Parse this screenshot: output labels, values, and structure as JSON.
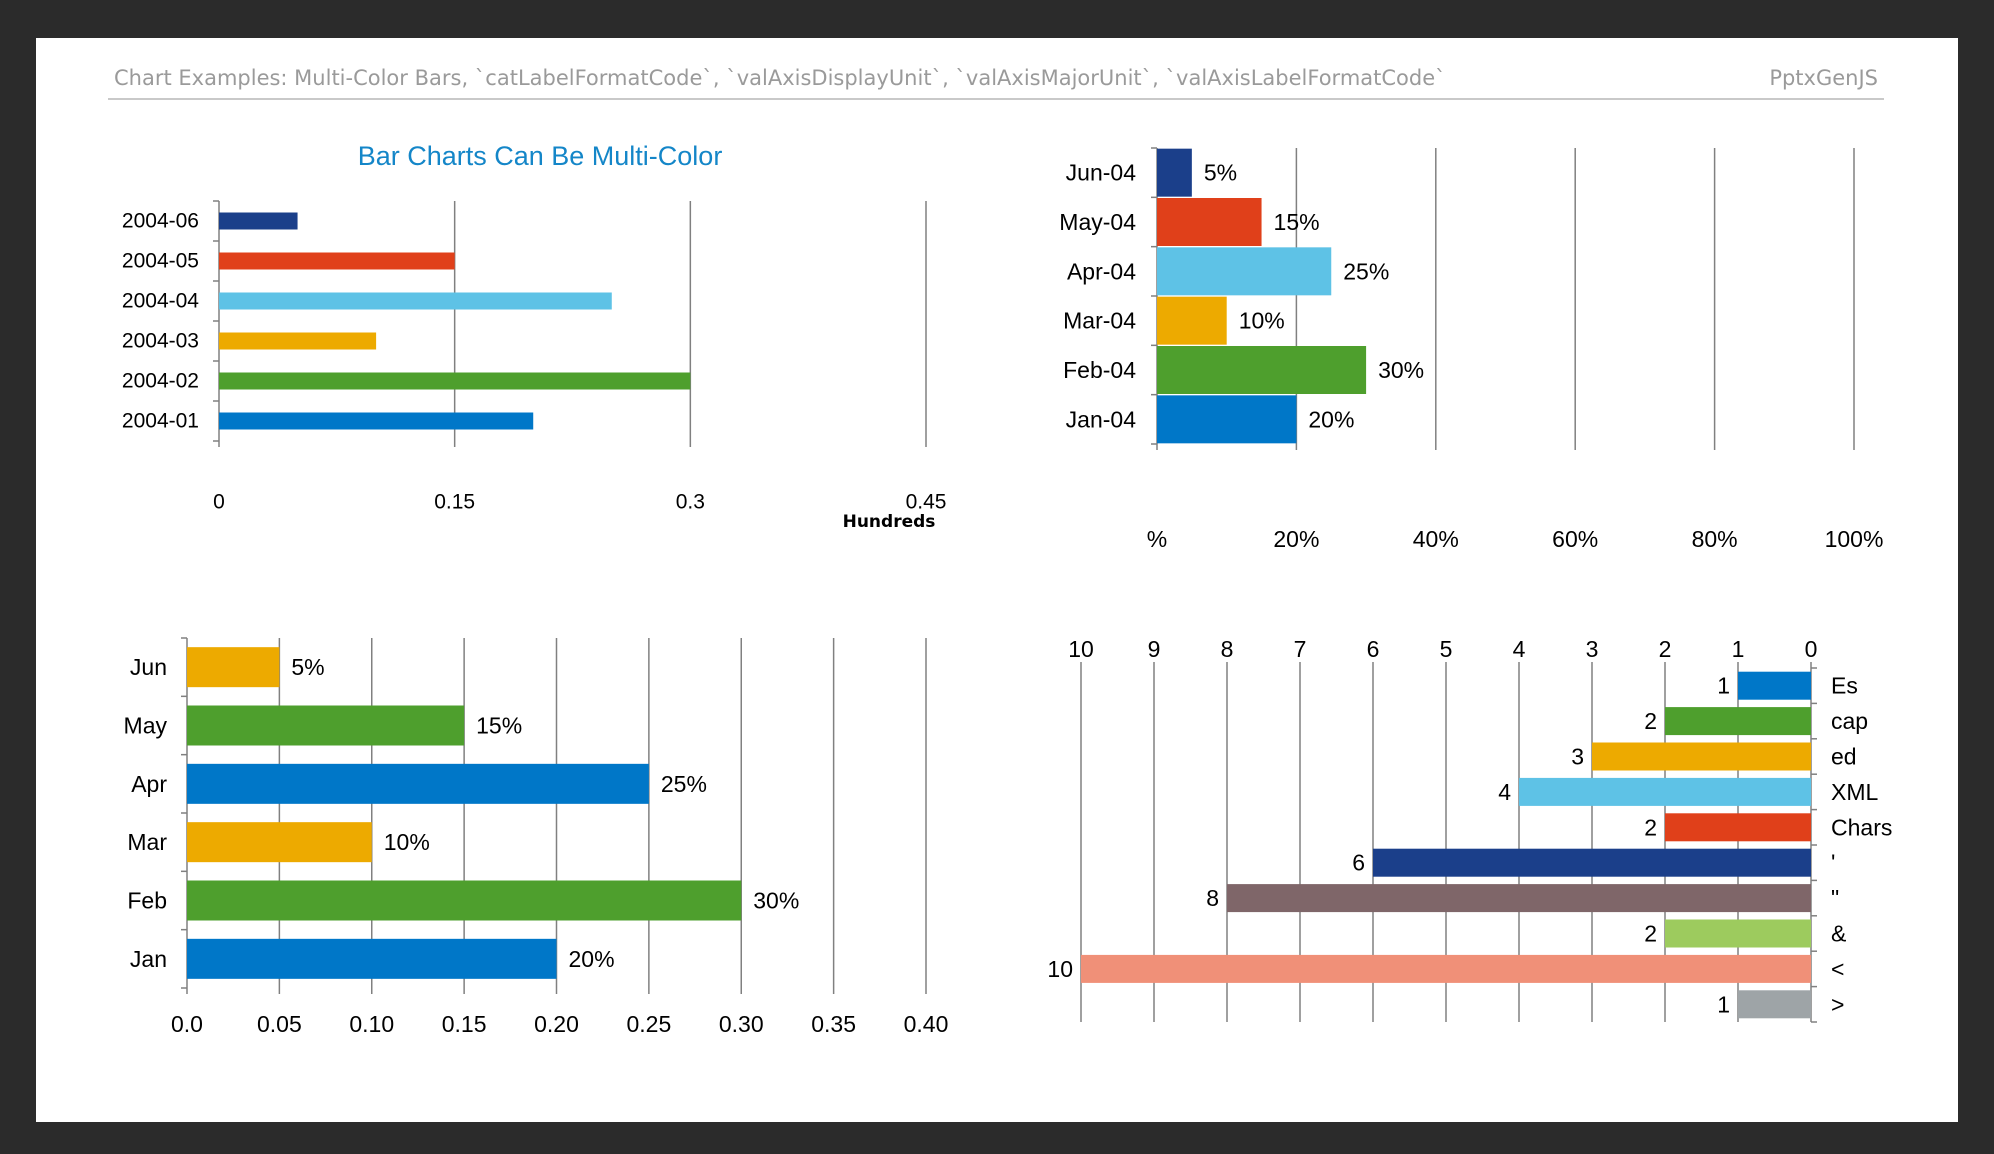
{
  "header": {
    "title": "Chart Examples: Multi-Color Bars, `catLabelFormatCode`, `valAxisDisplayUnit`, `valAxisMajorUnit`, `valAxisLabelFormatCode`",
    "brand": "PptxGenJS"
  },
  "colors": {
    "dark_blue": "#1b3f8a",
    "orange_red": "#e0401a",
    "sky_blue": "#5ec2e6",
    "gold": "#edaa00",
    "green": "#4e9f2d",
    "blue": "#0077c8",
    "taupe": "#7f6669",
    "light_green": "#9dcb5e",
    "salmon": "#f09078",
    "gray": "#9ea4a7",
    "title_blue": "#1486c8"
  },
  "chart_data": [
    {
      "id": "chart1",
      "type": "bar",
      "orientation": "horizontal",
      "title": "Bar Charts Can Be Multi-Color",
      "categories": [
        "2004-01",
        "2004-02",
        "2004-03",
        "2004-04",
        "2004-05",
        "2004-06"
      ],
      "values": [
        0.2,
        0.3,
        0.1,
        0.25,
        0.15,
        0.05
      ],
      "bar_colors": [
        "#0077c8",
        "#4e9f2d",
        "#edaa00",
        "#5ec2e6",
        "#e0401a",
        "#1b3f8a"
      ],
      "xlim": [
        0,
        0.45
      ],
      "ticks": [
        "0",
        "0.15",
        "0.3",
        "0.45"
      ],
      "display_unit_label": "Hundreds",
      "grid": true,
      "data_labels": []
    },
    {
      "id": "chart2",
      "type": "bar",
      "orientation": "horizontal",
      "title": "",
      "categories": [
        "Jan-04",
        "Feb-04",
        "Mar-04",
        "Apr-04",
        "May-04",
        "Jun-04"
      ],
      "values": [
        20,
        30,
        10,
        25,
        15,
        5
      ],
      "bar_colors": [
        "#0077c8",
        "#4e9f2d",
        "#edaa00",
        "#5ec2e6",
        "#e0401a",
        "#1b3f8a"
      ],
      "xlim": [
        0,
        100
      ],
      "ticks": [
        "%",
        "20%",
        "40%",
        "60%",
        "80%",
        "100%"
      ],
      "grid": true,
      "data_labels": [
        "20%",
        "30%",
        "10%",
        "25%",
        "15%",
        "5%"
      ]
    },
    {
      "id": "chart3",
      "type": "bar",
      "orientation": "horizontal",
      "title": "",
      "categories": [
        "Jan",
        "Feb",
        "Mar",
        "Apr",
        "May",
        "Jun"
      ],
      "values": [
        0.2,
        0.3,
        0.1,
        0.25,
        0.15,
        0.05
      ],
      "bar_colors": [
        "#0077c8",
        "#4e9f2d",
        "#edaa00",
        "#0077c8",
        "#4e9f2d",
        "#edaa00"
      ],
      "xlim": [
        0,
        0.4
      ],
      "ticks": [
        "0.0",
        "0.05",
        "0.10",
        "0.15",
        "0.20",
        "0.25",
        "0.30",
        "0.35",
        "0.40"
      ],
      "grid": true,
      "data_labels": [
        "20%",
        "30%",
        "10%",
        "25%",
        "15%",
        "5%"
      ]
    },
    {
      "id": "chart4",
      "type": "bar",
      "orientation": "horizontal",
      "reversed_axis": true,
      "title": "",
      "categories": [
        ">",
        "<",
        "&",
        "\"",
        "'",
        "Chars",
        "XML",
        "ed",
        "cap",
        "Es"
      ],
      "values": [
        1,
        10,
        2,
        8,
        6,
        2,
        4,
        3,
        2,
        1
      ],
      "bar_colors": [
        "#9ea4a7",
        "#f09078",
        "#9dcb5e",
        "#7f6669",
        "#1b3f8a",
        "#e0401a",
        "#5ec2e6",
        "#edaa00",
        "#4e9f2d",
        "#0077c8"
      ],
      "xlim": [
        0,
        10
      ],
      "ticks": [
        "10",
        "9",
        "8",
        "7",
        "6",
        "5",
        "4",
        "3",
        "2",
        "1",
        "0"
      ],
      "grid": true,
      "data_labels": [
        "1",
        "10",
        "2",
        "8",
        "6",
        "2",
        "4",
        "3",
        "2",
        "1"
      ]
    }
  ]
}
